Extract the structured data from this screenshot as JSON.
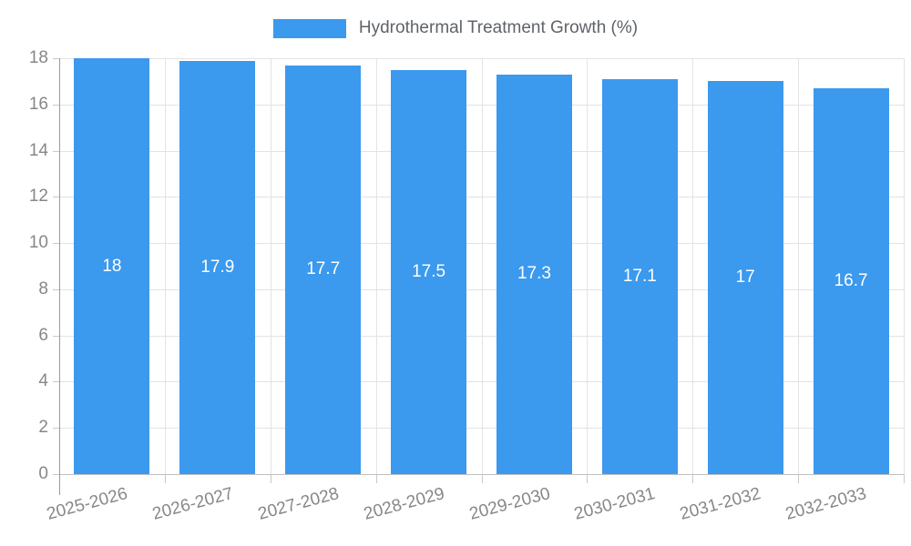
{
  "legend": {
    "label": "Hydrothermal Treatment Growth (%)",
    "swatch_color": "#3b99ee"
  },
  "chart_data": {
    "type": "bar",
    "title": "",
    "categories": [
      "2025-2026",
      "2026-2027",
      "2027-2028",
      "2028-2029",
      "2029-2030",
      "2030-2031",
      "2031-2032",
      "2032-2033"
    ],
    "series": [
      {
        "name": "Hydrothermal Treatment Growth (%)",
        "values": [
          18,
          17.9,
          17.7,
          17.5,
          17.3,
          17.1,
          17,
          16.7
        ]
      }
    ],
    "value_labels": [
      "18",
      "17.9",
      "17.7",
      "17.5",
      "17.3",
      "17.1",
      "17",
      "16.7"
    ],
    "xlabel": "",
    "ylabel": "",
    "ylim": [
      0,
      18
    ],
    "yticks": [
      0,
      2,
      4,
      6,
      8,
      10,
      12,
      14,
      16,
      18
    ],
    "grid": true,
    "legend_position": "top",
    "colors": {
      "bar": "#3b99ee",
      "bar_label": "#ffffff",
      "gridline": "#e3e3e3",
      "tick_mark": "#c9c9c9",
      "axis_line_y": "#9a9a9a",
      "axis_line_x": "#c0c0c0",
      "tick_text": "#878787",
      "legend_text": "#5f6368"
    }
  }
}
